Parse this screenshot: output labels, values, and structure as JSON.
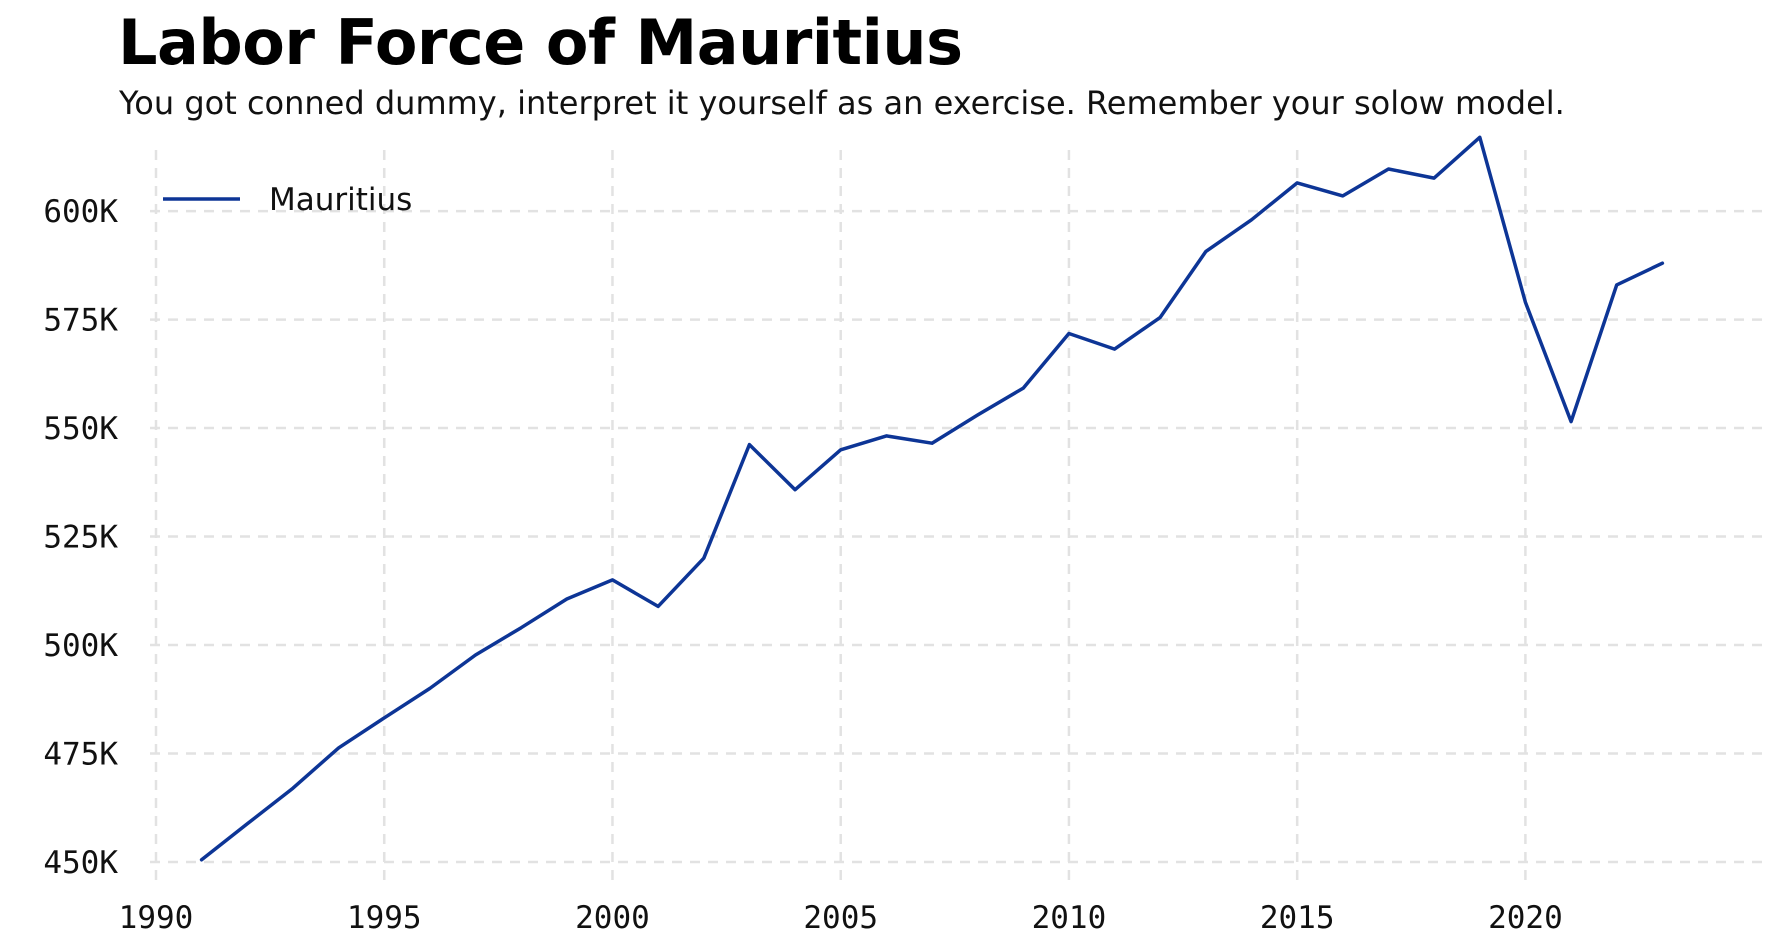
{
  "chart_data": {
    "type": "line",
    "title": "Labor Force of Mauritius",
    "subtitle": "You got conned dummy, interpret it yourself as an exercise. Remember your solow model.",
    "xlabel": "",
    "ylabel": "",
    "xlim": [
      1990,
      2024
    ],
    "ylim": [
      450000,
      615000
    ],
    "x_ticks": [
      1990,
      1995,
      2000,
      2005,
      2010,
      2015,
      2020
    ],
    "x_tick_labels": [
      "1990",
      "1995",
      "2000",
      "2005",
      "2010",
      "2015",
      "2020"
    ],
    "y_ticks": [
      450000,
      475000,
      500000,
      525000,
      550000,
      575000,
      600000
    ],
    "y_tick_labels": [
      "450K",
      "475K",
      "500K",
      "525K",
      "550K",
      "575K",
      "600K"
    ],
    "grid": true,
    "legend_position": "top-left",
    "series": [
      {
        "name": "Mauritius",
        "color": "#0d3596",
        "x": [
          1991,
          1992,
          1993,
          1994,
          1995,
          1996,
          1997,
          1998,
          1999,
          2000,
          2001,
          2002,
          2003,
          2004,
          2005,
          2006,
          2007,
          2008,
          2009,
          2010,
          2011,
          2012,
          2013,
          2014,
          2015,
          2016,
          2017,
          2018,
          2019,
          2020,
          2021,
          2022,
          2023
        ],
        "values": [
          450500,
          458800,
          467000,
          476300,
          483200,
          490000,
          497700,
          504000,
          510600,
          515000,
          508900,
          520000,
          546200,
          535800,
          545000,
          548200,
          546500,
          553000,
          559200,
          571800,
          568200,
          575500,
          590700,
          598000,
          606500,
          603500,
          609700,
          607600,
          617000,
          579000,
          551500,
          583000,
          588000
        ]
      }
    ]
  }
}
